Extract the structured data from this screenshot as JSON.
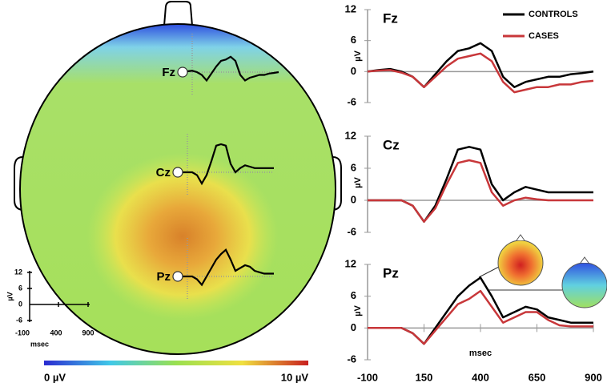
{
  "chart_data": [
    {
      "type": "line",
      "title": "Fz",
      "y_label": "µV",
      "x": [
        -100,
        -50,
        0,
        50,
        100,
        150,
        200,
        250,
        300,
        350,
        400,
        450,
        500,
        550,
        600,
        650,
        700,
        750,
        800,
        850,
        900
      ],
      "xlim": [
        -100,
        900
      ],
      "ylim": [
        -6,
        12
      ],
      "yticks": [
        -6,
        0,
        6,
        12
      ],
      "series": [
        {
          "name": "CONTROLS",
          "color": "#000000",
          "values": [
            0,
            0.3,
            0.5,
            0,
            -1,
            -3,
            -0.5,
            2,
            4,
            4.5,
            5.5,
            4,
            -1,
            -3,
            -2,
            -1.5,
            -1,
            -1,
            -0.5,
            -0.3,
            0
          ]
        },
        {
          "name": "CASES",
          "color": "#c8373a",
          "values": [
            0,
            0.2,
            0.3,
            -0.2,
            -1,
            -3,
            -1,
            1,
            2.5,
            3,
            3.5,
            2,
            -2,
            -4,
            -3.5,
            -3,
            -3,
            -2.5,
            -2.5,
            -2,
            -1.8
          ]
        }
      ]
    },
    {
      "type": "line",
      "title": "Cz",
      "y_label": "µV",
      "x": [
        -100,
        -50,
        0,
        50,
        100,
        150,
        200,
        250,
        300,
        350,
        400,
        450,
        500,
        550,
        600,
        650,
        700,
        750,
        800,
        850,
        900
      ],
      "xlim": [
        -100,
        900
      ],
      "ylim": [
        -6,
        12
      ],
      "yticks": [
        -6,
        0,
        6,
        12
      ],
      "series": [
        {
          "color": "#000000",
          "values": [
            0,
            0,
            0,
            0,
            -1,
            -4,
            -1,
            4,
            9.5,
            10,
            9.5,
            3,
            0,
            1.5,
            2.5,
            2,
            1.5,
            1.5,
            1.5,
            1.5,
            1.5
          ]
        },
        {
          "color": "#c8373a",
          "values": [
            0,
            0,
            0,
            0,
            -1,
            -4,
            -1.5,
            3,
            7,
            7.5,
            7,
            1.5,
            -1,
            0,
            0.5,
            0.2,
            0,
            0,
            0,
            0,
            0
          ]
        }
      ]
    },
    {
      "type": "line",
      "title": "Pz",
      "y_label": "µV",
      "x_label": "msec",
      "x": [
        -100,
        -50,
        0,
        50,
        100,
        150,
        200,
        250,
        300,
        350,
        400,
        450,
        500,
        550,
        600,
        650,
        700,
        750,
        800,
        850,
        900
      ],
      "xlim": [
        -100,
        900
      ],
      "xticks": [
        -100,
        150,
        400,
        650,
        900
      ],
      "ylim": [
        -6,
        12
      ],
      "yticks": [
        -6,
        0,
        6,
        12
      ],
      "series": [
        {
          "color": "#000000",
          "values": [
            0,
            0,
            0,
            0,
            -1,
            -3,
            0,
            3,
            6,
            8,
            9.5,
            6,
            2,
            3,
            4,
            3.5,
            2,
            1.5,
            1,
            1,
            1
          ]
        },
        {
          "color": "#c8373a",
          "values": [
            0,
            0,
            0,
            0,
            -1,
            -3,
            -0.5,
            2,
            4.5,
            5.5,
            7,
            4,
            1,
            2,
            3,
            3,
            1.5,
            0.5,
            0.3,
            0.3,
            0.3
          ]
        }
      ]
    }
  ],
  "head_map": {
    "electrodes": [
      "Fz",
      "Cz",
      "Pz"
    ],
    "scale": {
      "y_label": "µV",
      "x_label": "msec",
      "yticks": [
        "12",
        "6",
        "0",
        "-6"
      ],
      "xticks": [
        "-100",
        "400",
        "900"
      ]
    },
    "colorbar": {
      "min_label": "0 µV",
      "max_label": "10 µV"
    }
  }
}
